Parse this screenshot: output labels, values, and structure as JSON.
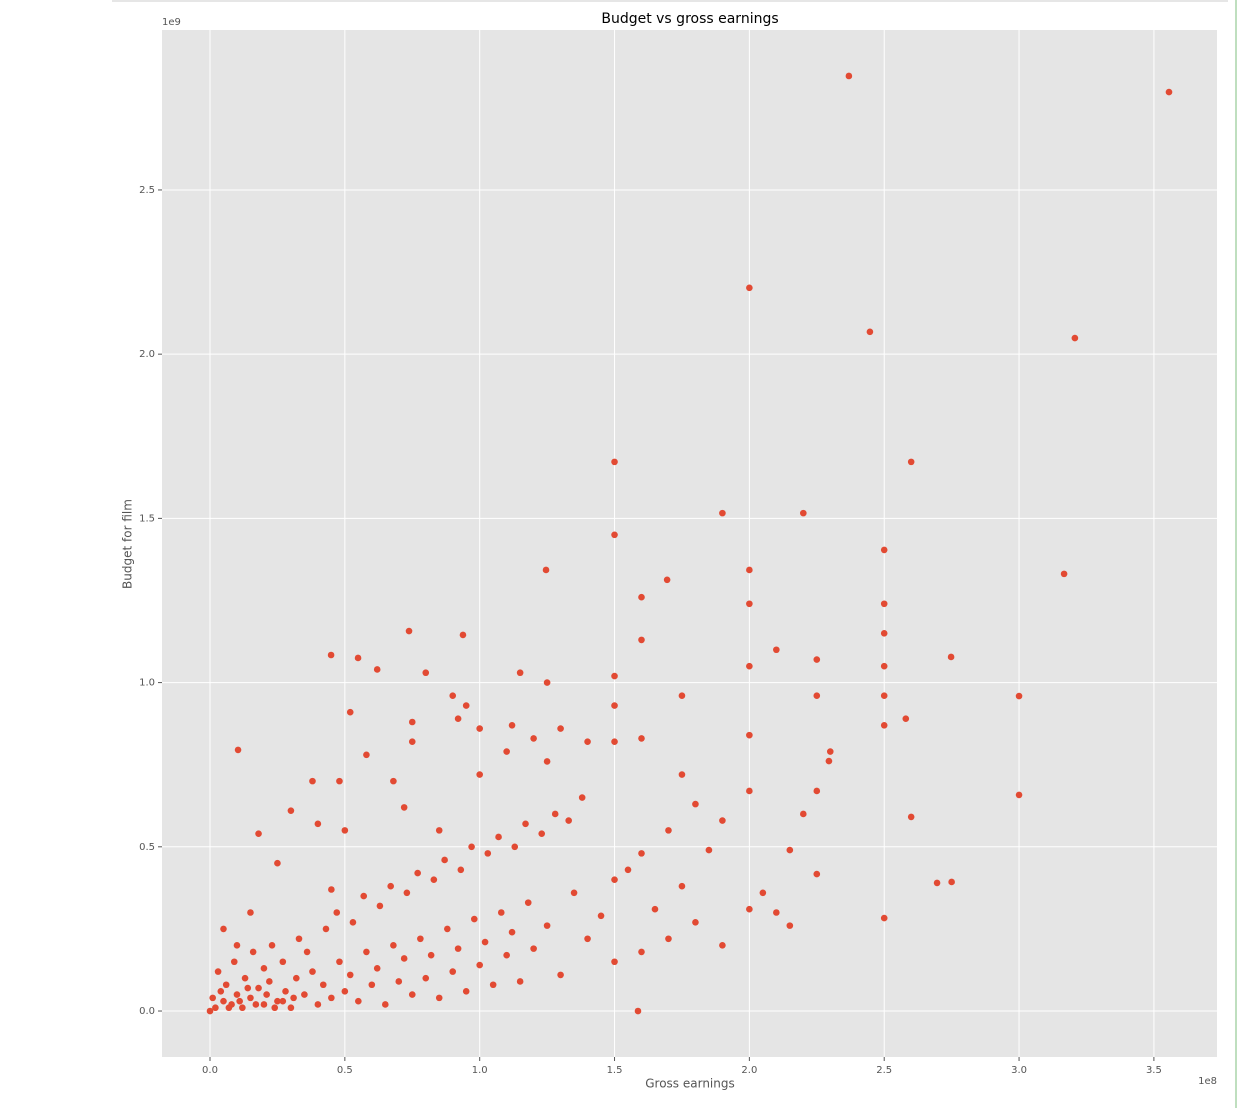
{
  "chart_data": {
    "type": "scatter",
    "title": "Budget vs gross earnings",
    "x_label": "Gross earnings",
    "y_label": "Budget for film",
    "x_offset_label": "1e8",
    "y_offset_label": "1e9",
    "color": "#E24A33",
    "grid": true,
    "xlim": [
      -0.178,
      3.734
    ],
    "ylim": [
      -0.14,
      2.987
    ],
    "xticks": [
      {
        "value": 0,
        "label": "0.0"
      },
      0.5,
      {
        "value": 1,
        "label": "1.0"
      },
      1.5,
      {
        "value": 2,
        "label": "2.0"
      },
      2.5,
      {
        "value": 3,
        "label": "3.0"
      },
      3.5
    ],
    "yticks": [
      {
        "value": 0,
        "label": "0.0"
      },
      0.5,
      {
        "value": 1,
        "label": "1.0"
      },
      1.5,
      {
        "value": 2,
        "label": "2.0"
      },
      2.5
    ],
    "x": [
      2.369,
      3.556,
      2.0,
      2.447,
      3.207,
      1.5,
      2.6,
      1.9,
      2.2,
      1.5,
      2.5,
      1.246,
      3.167,
      1.695,
      2.0,
      0.738,
      0.938,
      0.449,
      0.549,
      2.748,
      3.0,
      3.0,
      0.104,
      2.6,
      2.5,
      1.587,
      2.75,
      2.696,
      2.25,
      2.295,
      0.0,
      0.02,
      0.05,
      0.08,
      0.1,
      0.12,
      0.15,
      0.18,
      0.2,
      0.22,
      0.25,
      0.28,
      0.3,
      0.32,
      0.35,
      0.38,
      0.4,
      0.42,
      0.45,
      0.48,
      0.5,
      0.52,
      0.55,
      0.58,
      0.6,
      0.62,
      0.65,
      0.68,
      0.7,
      0.72,
      0.75,
      0.78,
      0.8,
      0.82,
      0.85,
      0.88,
      0.9,
      0.92,
      0.95,
      0.98,
      1.0,
      1.02,
      1.05,
      1.08,
      1.1,
      1.12,
      1.15,
      1.18,
      1.2,
      1.25,
      1.3,
      1.35,
      1.4,
      1.45,
      1.5,
      1.5,
      1.55,
      1.6,
      1.6,
      1.65,
      1.7,
      1.7,
      1.75,
      1.75,
      1.8,
      1.8,
      1.85,
      1.9,
      1.9,
      2.0,
      2.0,
      2.0,
      2.0,
      2.0,
      2.05,
      2.1,
      2.1,
      2.15,
      2.15,
      2.25,
      2.25,
      2.25,
      2.5,
      2.5,
      2.5,
      2.5,
      2.5,
      2.58,
      2.3,
      2.2,
      0.05,
      0.1,
      0.15,
      0.18,
      0.25,
      0.3,
      0.38,
      0.4,
      0.45,
      0.48,
      0.5,
      0.52,
      0.58,
      0.62,
      0.68,
      0.72,
      0.75,
      0.75,
      0.8,
      0.85,
      0.9,
      0.92,
      0.95,
      1.0,
      1.0,
      1.1,
      1.12,
      1.15,
      1.25,
      1.3,
      1.2,
      1.25,
      1.4,
      1.5,
      1.5,
      1.5,
      1.6,
      1.6,
      1.6,
      1.75,
      0.03,
      0.06,
      0.09,
      0.13,
      0.16,
      0.2,
      0.23,
      0.27,
      0.33,
      0.36,
      0.43,
      0.47,
      0.53,
      0.57,
      0.63,
      0.67,
      0.73,
      0.77,
      0.83,
      0.87,
      0.93,
      0.97,
      1.03,
      1.07,
      1.13,
      1.17,
      1.23,
      1.28,
      1.33,
      1.38,
      0.01,
      0.04,
      0.07,
      0.11,
      0.14,
      0.17,
      0.21,
      0.24,
      0.27,
      0.31
    ],
    "values": [
      2.847,
      2.798,
      2.202,
      2.068,
      2.049,
      1.672,
      1.672,
      1.516,
      1.516,
      1.45,
      1.404,
      1.343,
      1.331,
      1.313,
      1.343,
      1.157,
      1.145,
      1.084,
      1.075,
      1.078,
      0.959,
      0.658,
      0.795,
      0.591,
      0.283,
      0,
      0.393,
      0.39,
      0.417,
      0.761,
      0.0,
      0.01,
      0.03,
      0.02,
      0.05,
      0.01,
      0.04,
      0.07,
      0.02,
      0.09,
      0.03,
      0.06,
      0.01,
      0.1,
      0.05,
      0.12,
      0.02,
      0.08,
      0.04,
      0.15,
      0.06,
      0.11,
      0.03,
      0.18,
      0.08,
      0.13,
      0.02,
      0.2,
      0.09,
      0.16,
      0.05,
      0.22,
      0.1,
      0.17,
      0.04,
      0.25,
      0.12,
      0.19,
      0.06,
      0.28,
      0.14,
      0.21,
      0.08,
      0.3,
      0.17,
      0.24,
      0.09,
      0.33,
      0.19,
      0.26,
      0.11,
      0.36,
      0.22,
      0.29,
      0.15,
      0.4,
      0.43,
      0.18,
      0.48,
      0.31,
      0.22,
      0.55,
      0.38,
      0.72,
      0.27,
      0.63,
      0.49,
      0.2,
      0.58,
      0.31,
      0.67,
      0.84,
      1.05,
      1.24,
      0.36,
      0.3,
      1.1,
      0.26,
      0.49,
      0.67,
      0.96,
      1.07,
      0.87,
      0.96,
      1.05,
      1.15,
      1.24,
      0.89,
      0.79,
      0.6,
      0.25,
      0.2,
      0.3,
      0.54,
      0.45,
      0.61,
      0.7,
      0.57,
      0.37,
      0.7,
      0.55,
      0.91,
      0.78,
      1.04,
      0.7,
      0.62,
      0.88,
      0.82,
      1.03,
      0.55,
      0.96,
      0.89,
      0.93,
      0.72,
      0.86,
      0.79,
      0.87,
      1.03,
      1.0,
      0.86,
      0.83,
      0.76,
      0.82,
      0.82,
      0.93,
      1.02,
      0.83,
      1.13,
      1.26,
      0.96,
      0.12,
      0.08,
      0.15,
      0.1,
      0.18,
      0.13,
      0.2,
      0.15,
      0.22,
      0.18,
      0.25,
      0.3,
      0.27,
      0.35,
      0.32,
      0.38,
      0.36,
      0.42,
      0.4,
      0.46,
      0.43,
      0.5,
      0.48,
      0.53,
      0.5,
      0.57,
      0.54,
      0.6,
      0.58,
      0.65,
      0.04,
      0.06,
      0.01,
      0.03,
      0.07,
      0.02,
      0.05,
      0.01,
      0.03,
      0.04
    ]
  }
}
